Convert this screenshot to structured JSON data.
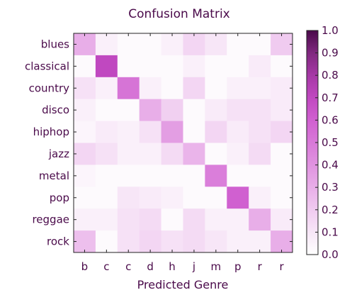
{
  "chart_data": {
    "type": "heatmap",
    "title": "Confusion Matrix",
    "xlabel": "Predicted Genre",
    "ylabel": "",
    "row_labels": [
      "blues",
      "classical",
      "country",
      "disco",
      "hiphop",
      "jazz",
      "metal",
      "pop",
      "reggae",
      "rock"
    ],
    "col_labels": [
      "b",
      "c",
      "c",
      "d",
      "h",
      "j",
      "m",
      "p",
      "r",
      "r"
    ],
    "values": [
      [
        0.3,
        0.06,
        0.02,
        0.02,
        0.06,
        0.16,
        0.1,
        0.02,
        0.02,
        0.2
      ],
      [
        0.02,
        0.7,
        0.02,
        0.02,
        0.02,
        0.06,
        0.02,
        0.02,
        0.08,
        0.02
      ],
      [
        0.12,
        0.06,
        0.52,
        0.06,
        0.02,
        0.16,
        0.02,
        0.06,
        0.06,
        0.08
      ],
      [
        0.06,
        0.02,
        0.02,
        0.3,
        0.18,
        0.02,
        0.08,
        0.12,
        0.12,
        0.08
      ],
      [
        0.04,
        0.08,
        0.06,
        0.12,
        0.36,
        0.02,
        0.16,
        0.08,
        0.12,
        0.16
      ],
      [
        0.16,
        0.12,
        0.06,
        0.06,
        0.14,
        0.28,
        0.02,
        0.06,
        0.14,
        0.02
      ],
      [
        0.04,
        0.02,
        0.02,
        0.02,
        0.02,
        0.02,
        0.48,
        0.02,
        0.02,
        0.02
      ],
      [
        0.02,
        0.02,
        0.1,
        0.08,
        0.06,
        0.02,
        0.02,
        0.6,
        0.06,
        0.02
      ],
      [
        0.06,
        0.06,
        0.12,
        0.14,
        0.02,
        0.14,
        0.06,
        0.06,
        0.3,
        0.08
      ],
      [
        0.24,
        0.02,
        0.12,
        0.16,
        0.12,
        0.14,
        0.1,
        0.06,
        0.06,
        0.3
      ]
    ],
    "colorbar": {
      "min": 0.0,
      "max": 1.0,
      "ticks": [
        "0.0",
        "0.1",
        "0.2",
        "0.3",
        "0.4",
        "0.5",
        "0.6",
        "0.7",
        "0.8",
        "0.9",
        "1.0"
      ],
      "colors": [
        "#ffffff",
        "#f7e6f7",
        "#f0cbf0",
        "#e8aee8",
        "#e093e0",
        "#d879d8",
        "#d060d0",
        "#c048c0",
        "#a638a6",
        "#80287f",
        "#4a0a4a"
      ]
    },
    "grid": false
  }
}
